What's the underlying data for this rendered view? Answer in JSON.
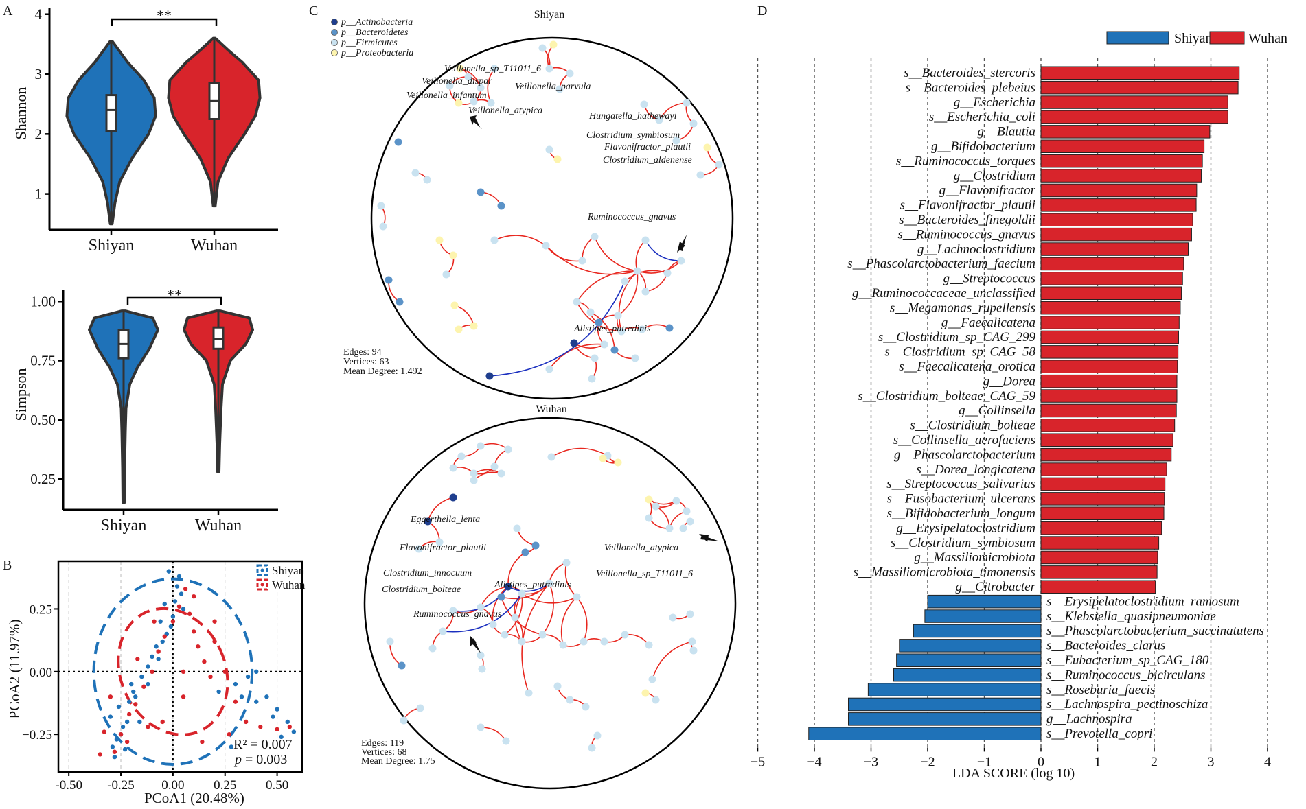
{
  "colors": {
    "shiyan": "#1f72b8",
    "wuhan": "#d8242b",
    "axis": "#000000",
    "edge_pos": "#e8271f",
    "edge_neg": "#1a2fbf",
    "node_actino": "#1f3e8e",
    "node_bacteroid": "#5b93c8",
    "node_firmic": "#c9e2f0",
    "node_proteo": "#fdf4ae"
  },
  "panel_labels": {
    "a": "A",
    "b": "B",
    "c": "C",
    "d": "D"
  },
  "chart_data": [
    {
      "id": "A-shannon",
      "type": "violin",
      "title": "",
      "ylabel": "Shannon",
      "ylim": [
        0.4,
        4.1
      ],
      "yticks": [
        1,
        2,
        3,
        4
      ],
      "categories": [
        "Shiyan",
        "Wuhan"
      ],
      "significance": "**",
      "groups": [
        {
          "name": "Shiyan",
          "min": 0.5,
          "q1": 2.05,
          "median": 2.4,
          "q3": 2.65,
          "max": 3.55,
          "density": [
            [
              0.5,
              0.02
            ],
            [
              0.85,
              0.08
            ],
            [
              1.2,
              0.18
            ],
            [
              1.6,
              0.45
            ],
            [
              2.0,
              0.8
            ],
            [
              2.3,
              0.95
            ],
            [
              2.6,
              0.92
            ],
            [
              2.9,
              0.7
            ],
            [
              3.2,
              0.35
            ],
            [
              3.55,
              0.02
            ]
          ]
        },
        {
          "name": "Wuhan",
          "min": 0.8,
          "q1": 2.25,
          "median": 2.55,
          "q3": 2.85,
          "max": 3.6,
          "density": [
            [
              0.8,
              0.02
            ],
            [
              1.2,
              0.08
            ],
            [
              1.6,
              0.3
            ],
            [
              2.0,
              0.65
            ],
            [
              2.3,
              0.88
            ],
            [
              2.6,
              0.98
            ],
            [
              2.9,
              0.95
            ],
            [
              3.2,
              0.6
            ],
            [
              3.4,
              0.3
            ],
            [
              3.6,
              0.02
            ]
          ]
        }
      ]
    },
    {
      "id": "A-simpson",
      "type": "violin",
      "ylabel": "Simpson",
      "ylim": [
        0.12,
        1.05
      ],
      "yticks": [
        0.25,
        0.5,
        0.75,
        1.0
      ],
      "yticklabels": [
        "0.25",
        "0.50",
        "0.75",
        "1.00"
      ],
      "categories": [
        "Shiyan",
        "Wuhan"
      ],
      "significance": "**",
      "groups": [
        {
          "name": "Shiyan",
          "min": 0.15,
          "q1": 0.76,
          "median": 0.82,
          "q3": 0.88,
          "max": 0.96,
          "density": [
            [
              0.15,
              0.02
            ],
            [
              0.3,
              0.03
            ],
            [
              0.45,
              0.05
            ],
            [
              0.55,
              0.07
            ],
            [
              0.65,
              0.18
            ],
            [
              0.72,
              0.4
            ],
            [
              0.8,
              0.75
            ],
            [
              0.88,
              1.0
            ],
            [
              0.93,
              0.85
            ],
            [
              0.96,
              0.05
            ]
          ]
        },
        {
          "name": "Wuhan",
          "min": 0.28,
          "q1": 0.8,
          "median": 0.84,
          "q3": 0.89,
          "max": 0.96,
          "density": [
            [
              0.28,
              0.02
            ],
            [
              0.4,
              0.04
            ],
            [
              0.55,
              0.08
            ],
            [
              0.65,
              0.12
            ],
            [
              0.75,
              0.35
            ],
            [
              0.82,
              0.8
            ],
            [
              0.88,
              1.0
            ],
            [
              0.93,
              0.9
            ],
            [
              0.96,
              0.05
            ]
          ]
        }
      ]
    },
    {
      "id": "B-pcoa",
      "type": "scatter",
      "xlabel": "PCoA1 (20.48%)",
      "ylabel": "PCoA2 (11.97%)",
      "xlim": [
        -0.55,
        0.62
      ],
      "ylim": [
        -0.4,
        0.44
      ],
      "xticks": [
        -0.5,
        -0.25,
        0.0,
        0.25,
        0.5
      ],
      "xticklabels": [
        "-0.50",
        "-0.25",
        "0.00",
        "0.25",
        "0.50"
      ],
      "yticks": [
        -0.25,
        0.0,
        0.25
      ],
      "yticklabels": [
        "−0.25",
        "0.00",
        "0.25"
      ],
      "legend": [
        {
          "label": "Shiyan"
        },
        {
          "label": "Wuhan"
        }
      ],
      "stats": {
        "r2": "R² = 0.007",
        "p_label": "p",
        "p_value": " = 0.003"
      },
      "ellipses": [
        {
          "name": "Shiyan",
          "cx": 0.0,
          "cy": 0.0,
          "rx": 0.38,
          "ry": 0.37
        },
        {
          "name": "Wuhan",
          "cx": 0.0,
          "cy": 0.0,
          "rx": 0.25,
          "ry": 0.26,
          "rotate": -25
        }
      ],
      "series": [
        {
          "name": "Shiyan",
          "points": [
            [
              -0.29,
              -0.3
            ],
            [
              -0.27,
              -0.27
            ],
            [
              -0.24,
              -0.22
            ],
            [
              -0.22,
              -0.2
            ],
            [
              -0.3,
              -0.18
            ],
            [
              -0.26,
              -0.14
            ],
            [
              -0.21,
              -0.12
            ],
            [
              -0.18,
              -0.1
            ],
            [
              -0.2,
              -0.05
            ],
            [
              -0.15,
              -0.02
            ],
            [
              -0.12,
              0.02
            ],
            [
              -0.1,
              0.06
            ],
            [
              -0.08,
              0.1
            ],
            [
              -0.05,
              0.12
            ],
            [
              -0.03,
              0.15
            ],
            [
              -0.01,
              0.18
            ],
            [
              0.0,
              0.22
            ],
            [
              0.01,
              0.28
            ],
            [
              0.02,
              0.34
            ],
            [
              0.03,
              0.38
            ],
            [
              -0.02,
              0.4
            ],
            [
              0.04,
              0.31
            ],
            [
              -0.07,
              0.05
            ],
            [
              -0.12,
              -0.05
            ],
            [
              -0.25,
              -0.25
            ],
            [
              -0.28,
              -0.34
            ],
            [
              -0.23,
              -0.31
            ],
            [
              0.22,
              -0.08
            ],
            [
              0.3,
              -0.05
            ],
            [
              0.36,
              -0.02
            ],
            [
              0.4,
              0.0
            ],
            [
              0.45,
              -0.1
            ],
            [
              0.5,
              -0.15
            ],
            [
              0.55,
              -0.2
            ],
            [
              0.58,
              -0.24
            ],
            [
              0.52,
              -0.26
            ],
            [
              0.48,
              -0.18
            ],
            [
              0.4,
              -0.12
            ],
            [
              0.33,
              -0.1
            ],
            [
              0.28,
              -0.3
            ],
            [
              -0.16,
              -0.2
            ],
            [
              -0.19,
              -0.08
            ],
            [
              -0.06,
              0.2
            ],
            [
              -0.04,
              0.27
            ],
            [
              0.05,
              0.25
            ]
          ]
        },
        {
          "name": "Wuhan",
          "points": [
            [
              -0.28,
              -0.32
            ],
            [
              -0.25,
              -0.25
            ],
            [
              -0.21,
              -0.17
            ],
            [
              -0.18,
              -0.13
            ],
            [
              -0.14,
              -0.06
            ],
            [
              -0.1,
              0.0
            ],
            [
              -0.07,
              0.08
            ],
            [
              -0.04,
              0.14
            ],
            [
              0.0,
              0.2
            ],
            [
              0.03,
              0.26
            ],
            [
              0.06,
              0.33
            ],
            [
              0.08,
              0.23
            ],
            [
              0.1,
              0.16
            ],
            [
              0.12,
              0.1
            ],
            [
              0.15,
              0.04
            ],
            [
              0.18,
              -0.02
            ],
            [
              0.2,
              0.12
            ],
            [
              0.25,
              0.0
            ],
            [
              0.3,
              -0.12
            ],
            [
              0.35,
              -0.2
            ],
            [
              0.42,
              -0.22
            ],
            [
              0.5,
              -0.23
            ],
            [
              0.56,
              -0.22
            ],
            [
              -0.33,
              -0.24
            ],
            [
              -0.3,
              -0.1
            ],
            [
              -0.22,
              -0.28
            ],
            [
              -0.12,
              -0.22
            ],
            [
              -0.05,
              -0.2
            ],
            [
              0.05,
              -0.1
            ],
            [
              0.14,
              -0.28
            ],
            [
              -0.35,
              -0.33
            ],
            [
              -0.17,
              0.05
            ],
            [
              -0.09,
              0.2
            ],
            [
              0.1,
              0.3
            ],
            [
              0.2,
              0.2
            ],
            [
              0.27,
              -0.25
            ],
            [
              0.05,
              0.0
            ]
          ]
        }
      ]
    },
    {
      "id": "D-lda",
      "type": "bar",
      "orientation": "horizontal",
      "xlabel": "LDA SCORE (log 10)",
      "xlim": [
        -5.2,
        4.4
      ],
      "xticks": [
        -5,
        -4,
        -3,
        -2,
        -1,
        0,
        1,
        2,
        3,
        4
      ],
      "xticklabels": [
        "−5",
        "−4",
        "−3",
        "−2",
        "−1",
        "0",
        "1",
        "2",
        "3",
        "4"
      ],
      "legend": [
        {
          "label": "Shiyan"
        },
        {
          "label": "Wuhan"
        }
      ],
      "bars": [
        {
          "label": "s__Bacteroides_stercoris",
          "value": 3.5,
          "group": "Wuhan"
        },
        {
          "label": "s__Bacteroides_plebeius",
          "value": 3.48,
          "group": "Wuhan"
        },
        {
          "label": "g__Escherichia",
          "value": 3.3,
          "group": "Wuhan"
        },
        {
          "label": "s__Escherichia_coli",
          "value": 3.3,
          "group": "Wuhan"
        },
        {
          "label": "g__Blautia",
          "value": 2.98,
          "group": "Wuhan"
        },
        {
          "label": "g__Bifidobacterium",
          "value": 2.88,
          "group": "Wuhan"
        },
        {
          "label": "s__Ruminococcus_torques",
          "value": 2.85,
          "group": "Wuhan"
        },
        {
          "label": "g__Clostridium",
          "value": 2.83,
          "group": "Wuhan"
        },
        {
          "label": "g__Flavonifractor",
          "value": 2.75,
          "group": "Wuhan"
        },
        {
          "label": "s__Flavonifractor_plautii",
          "value": 2.74,
          "group": "Wuhan"
        },
        {
          "label": "s__Bacteroides_finegoldii",
          "value": 2.68,
          "group": "Wuhan"
        },
        {
          "label": "s__Ruminococcus_gnavus",
          "value": 2.66,
          "group": "Wuhan"
        },
        {
          "label": "g__Lachnoclostridium",
          "value": 2.6,
          "group": "Wuhan"
        },
        {
          "label": "s__Phascolarctobacterium_faecium",
          "value": 2.52,
          "group": "Wuhan"
        },
        {
          "label": "g__Streptococcus",
          "value": 2.5,
          "group": "Wuhan"
        },
        {
          "label": "g__Ruminococcaceae_unclassified",
          "value": 2.48,
          "group": "Wuhan"
        },
        {
          "label": "s__Megamonas_rupellensis",
          "value": 2.46,
          "group": "Wuhan"
        },
        {
          "label": "g__Faecalicatena",
          "value": 2.44,
          "group": "Wuhan"
        },
        {
          "label": "s__Clostridium_sp_CAG_299",
          "value": 2.43,
          "group": "Wuhan"
        },
        {
          "label": "s__Clostridium_sp_CAG_58",
          "value": 2.42,
          "group": "Wuhan"
        },
        {
          "label": "s__Faecalicatena_orotica",
          "value": 2.41,
          "group": "Wuhan"
        },
        {
          "label": "g__Dorea",
          "value": 2.4,
          "group": "Wuhan"
        },
        {
          "label": "s__Clostridium_bolteae_CAG_59",
          "value": 2.4,
          "group": "Wuhan"
        },
        {
          "label": "g__Collinsella",
          "value": 2.39,
          "group": "Wuhan"
        },
        {
          "label": "s__Clostridium_bolteae",
          "value": 2.36,
          "group": "Wuhan"
        },
        {
          "label": "s__Collinsella_aerofaciens",
          "value": 2.33,
          "group": "Wuhan"
        },
        {
          "label": "g__Phascolarctobacterium",
          "value": 2.3,
          "group": "Wuhan"
        },
        {
          "label": "s__Dorea_longicatena",
          "value": 2.22,
          "group": "Wuhan"
        },
        {
          "label": "s__Streptococcus_salivarius",
          "value": 2.19,
          "group": "Wuhan"
        },
        {
          "label": "s__Fusobacterium_ulcerans",
          "value": 2.18,
          "group": "Wuhan"
        },
        {
          "label": "s__Bifidobacterium_longum",
          "value": 2.17,
          "group": "Wuhan"
        },
        {
          "label": "g__Erysipelatoclostridium",
          "value": 2.13,
          "group": "Wuhan"
        },
        {
          "label": "s__Clostridium_symbiosum",
          "value": 2.08,
          "group": "Wuhan"
        },
        {
          "label": "g__Massiliomicrobiota",
          "value": 2.06,
          "group": "Wuhan"
        },
        {
          "label": "s__Massiliomicrobiota_timonensis",
          "value": 2.05,
          "group": "Wuhan"
        },
        {
          "label": "g__Citrobacter",
          "value": 2.02,
          "group": "Wuhan"
        },
        {
          "label": "s__Erysipelatoclostridium_ramosum",
          "value": -2.0,
          "group": "Shiyan"
        },
        {
          "label": "s__Klebsiella_quasipneumoniae",
          "value": -2.05,
          "group": "Shiyan"
        },
        {
          "label": "s__Phascolarctobacterium_succinatutens",
          "value": -2.25,
          "group": "Shiyan"
        },
        {
          "label": "s__Bacteroides_clarus",
          "value": -2.5,
          "group": "Shiyan"
        },
        {
          "label": "s__Eubacterium_sp_CAG_180",
          "value": -2.55,
          "group": "Shiyan"
        },
        {
          "label": "s__Ruminococcus_bicirculans",
          "value": -2.6,
          "group": "Shiyan"
        },
        {
          "label": "s__Roseburia_faecis",
          "value": -3.05,
          "group": "Shiyan"
        },
        {
          "label": "s__Lachnospira_pectinoschiza",
          "value": -3.4,
          "group": "Shiyan"
        },
        {
          "label": "g__Lachnospira",
          "value": -3.4,
          "group": "Shiyan"
        },
        {
          "label": "s__Prevotella_copri",
          "value": -4.1,
          "group": "Shiyan"
        }
      ]
    },
    {
      "id": "C-networks",
      "type": "network",
      "legend": [
        "p__Actinobacteria",
        "p__Bacteroidetes",
        "p__Firmicutes",
        "p__Proteobacteria"
      ],
      "networks": [
        {
          "title": "Shiyan",
          "edges_label": "Edges: 94",
          "vertices_label": "Vertices: 63",
          "degree_label": "Mean Degree: 1.492",
          "labels": [
            "Veillonella_sp_T11011_6",
            "Veillonella_dispar",
            "Veillonella_parvula",
            "Veillonella_infantum",
            "Veillonella_atypica",
            "Hungatella_hathewayi",
            "Clostridium_symbiosum",
            "Flavonifractor_plautii",
            "Clostridium_aldenense",
            "Ruminococcus_gnavus",
            "Alistipes_putredinis"
          ]
        },
        {
          "title": "Wuhan",
          "edges_label": "Edges: 119",
          "vertices_label": "Vertices: 68",
          "degree_label": "Mean Degree: 1.75",
          "labels": [
            "Eggerthella_lenta",
            "Flavonifractor_plautii",
            "Veillonella_atypica",
            "Veillonella_sp_T11011_6",
            "Clostridium_innocuum",
            "Alistipes_putredinis",
            "Clostridium_bolteae",
            "Ruminococcus_gnavus"
          ]
        }
      ]
    }
  ]
}
